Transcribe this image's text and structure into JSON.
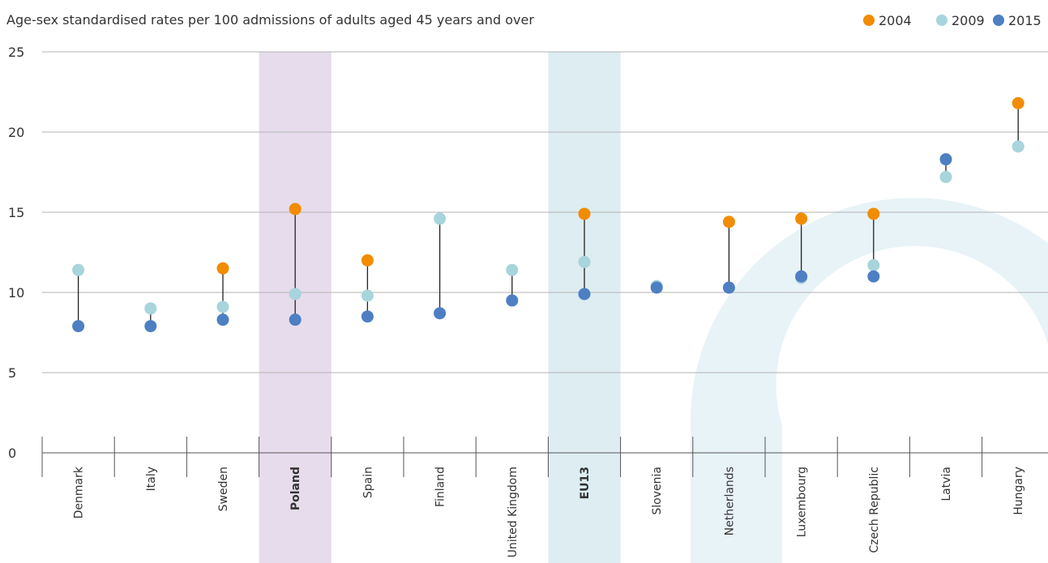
{
  "chart_data": {
    "type": "dot-range",
    "title": "Age-sex standardised rates per 100 admissions of adults aged 45 years and over",
    "xlabel": "",
    "ylabel": "",
    "ylim": [
      0,
      25
    ],
    "yticks": [
      0,
      5,
      10,
      15,
      20,
      25
    ],
    "grid": true,
    "legend_position": "top-right",
    "categories": [
      "Denmark",
      "Italy",
      "Sweden",
      "Poland",
      "Spain",
      "Finland",
      "United Kingdom",
      "EU13",
      "Slovenia",
      "Netherlands",
      "Luxembourg",
      "Czech Republic",
      "Latvia",
      "Hungary"
    ],
    "highlighted": [
      {
        "category": "Poland",
        "color": "#e6dcec"
      },
      {
        "category": "EU13",
        "color": "#ddedf2"
      }
    ],
    "bold_categories": [
      "Poland",
      "EU13"
    ],
    "series": [
      {
        "name": "2004",
        "color": "#f28c00",
        "values": [
          null,
          null,
          11.5,
          15.2,
          12.0,
          null,
          null,
          14.9,
          null,
          14.4,
          14.6,
          14.9,
          null,
          21.8
        ]
      },
      {
        "name": "2009",
        "color": "#a8d4dc",
        "values": [
          11.4,
          9.0,
          9.1,
          9.9,
          9.8,
          14.6,
          11.4,
          11.9,
          10.4,
          null,
          10.9,
          11.7,
          17.2,
          19.1
        ]
      },
      {
        "name": "2015",
        "color": "#4d7fc2",
        "values": [
          7.9,
          7.9,
          8.3,
          8.3,
          8.5,
          8.7,
          9.5,
          9.9,
          10.3,
          10.3,
          11.0,
          11.0,
          18.3,
          null
        ]
      }
    ]
  },
  "colors": {
    "connector": "#222222",
    "grid": "#b3b3b3",
    "axis": "#555555",
    "background_arc": "#e8f3f7"
  }
}
